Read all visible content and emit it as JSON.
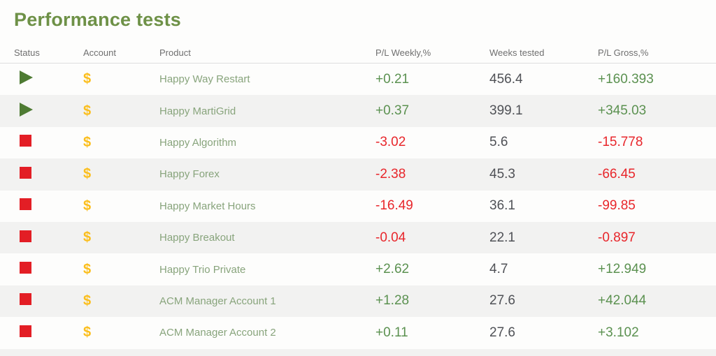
{
  "page": {
    "title": "Performance tests"
  },
  "table": {
    "columns": [
      "Status",
      "Account",
      "Product",
      "P/L Weekly,%",
      "Weeks tested",
      "P/L Gross,%"
    ],
    "rows": [
      {
        "status": "running",
        "status_icon": "play-icon",
        "account_icon": "dollar-icon",
        "product": "Happy Way Restart",
        "pl_weekly": "+0.21",
        "weeks_tested": "456.4",
        "pl_gross": "+160.393"
      },
      {
        "status": "running",
        "status_icon": "play-icon",
        "account_icon": "dollar-icon",
        "product": "Happy MartiGrid",
        "pl_weekly": "+0.37",
        "weeks_tested": "399.1",
        "pl_gross": "+345.03"
      },
      {
        "status": "stopped",
        "status_icon": "stop-icon",
        "account_icon": "dollar-icon",
        "product": "Happy Algorithm",
        "pl_weekly": "-3.02",
        "weeks_tested": "5.6",
        "pl_gross": "-15.778"
      },
      {
        "status": "stopped",
        "status_icon": "stop-icon",
        "account_icon": "dollar-icon",
        "product": "Happy Forex",
        "pl_weekly": "-2.38",
        "weeks_tested": "45.3",
        "pl_gross": "-66.45"
      },
      {
        "status": "stopped",
        "status_icon": "stop-icon",
        "account_icon": "dollar-icon",
        "product": "Happy Market Hours",
        "pl_weekly": "-16.49",
        "weeks_tested": "36.1",
        "pl_gross": "-99.85"
      },
      {
        "status": "stopped",
        "status_icon": "stop-icon",
        "account_icon": "dollar-icon",
        "product": "Happy Breakout",
        "pl_weekly": "-0.04",
        "weeks_tested": "22.1",
        "pl_gross": "-0.897"
      },
      {
        "status": "stopped",
        "status_icon": "stop-icon",
        "account_icon": "dollar-icon",
        "product": "Happy Trio Private",
        "pl_weekly": "+2.62",
        "weeks_tested": "4.7",
        "pl_gross": "+12.949"
      },
      {
        "status": "stopped",
        "status_icon": "stop-icon",
        "account_icon": "dollar-icon",
        "product": "ACM Manager Account 1",
        "pl_weekly": "+1.28",
        "weeks_tested": "27.6",
        "pl_gross": "+42.044"
      },
      {
        "status": "stopped",
        "status_icon": "stop-icon",
        "account_icon": "dollar-icon",
        "product": "ACM Manager Account 2",
        "pl_weekly": "+0.11",
        "weeks_tested": "27.6",
        "pl_gross": "+3.102"
      }
    ],
    "icons": {
      "dollar_glyph": "$"
    }
  },
  "colors": {
    "title_green": "#6e9147",
    "product_green": "#88a47c",
    "positive_green": "#5b9150",
    "negative_red": "#e8262b",
    "status_play_green": "#4e7b33",
    "status_stop_red": "#e31e25",
    "dollar_gold": "#fbbe1c",
    "row_alt_bg": "#f2f2f1",
    "header_text": "#6f6f6f"
  }
}
